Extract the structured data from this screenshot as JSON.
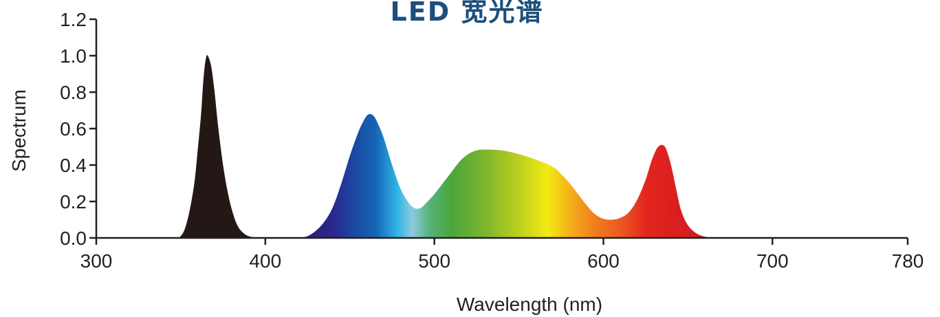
{
  "chart_data": {
    "type": "area",
    "title": "LED 宽光谱",
    "xlabel": "Wavelength (nm)",
    "ylabel": "Spectrum",
    "xlim": [
      300,
      780
    ],
    "ylim": [
      0,
      1.2
    ],
    "x_ticks": [
      300,
      400,
      500,
      600,
      700,
      780
    ],
    "y_ticks": [
      "0.0",
      "0.2",
      "0.4",
      "0.6",
      "0.8",
      "1.0",
      "1.2"
    ],
    "grid": false,
    "legend": "none",
    "series": [
      {
        "fill": "#231815",
        "x": [
          349,
          352,
          355,
          358,
          360,
          362,
          363,
          364,
          365,
          366,
          368,
          370,
          372,
          375,
          378,
          381,
          384,
          388,
          392,
          396
        ],
        "y": [
          0.0,
          0.04,
          0.14,
          0.3,
          0.48,
          0.68,
          0.82,
          0.93,
          0.99,
          1.0,
          0.94,
          0.8,
          0.62,
          0.4,
          0.24,
          0.13,
          0.06,
          0.02,
          0.005,
          0.0
        ]
      },
      {
        "fill": "spectrum-gradient",
        "x": [
          420,
          425,
          430,
          435,
          440,
          445,
          450,
          455,
          458,
          460,
          462,
          464,
          466,
          470,
          475,
          480,
          485,
          488,
          490,
          492,
          495,
          500,
          505,
          510,
          515,
          520,
          525,
          530,
          540,
          550,
          560,
          570,
          575,
          580,
          585,
          590,
          595,
          600,
          605,
          610,
          615,
          620,
          625,
          628,
          631,
          633,
          635,
          637,
          640,
          643,
          646,
          650,
          655,
          660,
          665
        ],
        "y": [
          0.0,
          0.01,
          0.04,
          0.09,
          0.17,
          0.3,
          0.45,
          0.58,
          0.64,
          0.67,
          0.68,
          0.67,
          0.64,
          0.55,
          0.4,
          0.27,
          0.19,
          0.165,
          0.16,
          0.165,
          0.19,
          0.24,
          0.3,
          0.36,
          0.42,
          0.46,
          0.48,
          0.485,
          0.48,
          0.46,
          0.43,
          0.39,
          0.35,
          0.3,
          0.24,
          0.18,
          0.13,
          0.105,
          0.1,
          0.11,
          0.14,
          0.21,
          0.32,
          0.41,
          0.48,
          0.505,
          0.51,
          0.49,
          0.4,
          0.27,
          0.15,
          0.07,
          0.025,
          0.007,
          0.0
        ]
      }
    ]
  },
  "colors": {
    "axis": "#231f20",
    "title": "#1c4f7c",
    "uv_peak": "#231815",
    "spectrum_stops": [
      {
        "nm": 420,
        "color": "#2a1f6e"
      },
      {
        "nm": 440,
        "color": "#29278f"
      },
      {
        "nm": 455,
        "color": "#1a4ea5"
      },
      {
        "nm": 465,
        "color": "#1463b5"
      },
      {
        "nm": 478,
        "color": "#2fb4e6"
      },
      {
        "nm": 487,
        "color": "#8ecae0"
      },
      {
        "nm": 497,
        "color": "#56b37a"
      },
      {
        "nm": 510,
        "color": "#4aa63c"
      },
      {
        "nm": 530,
        "color": "#7db52d"
      },
      {
        "nm": 552,
        "color": "#c3d21d"
      },
      {
        "nm": 567,
        "color": "#f4ea12"
      },
      {
        "nm": 580,
        "color": "#f5b11b"
      },
      {
        "nm": 595,
        "color": "#ef7d1e"
      },
      {
        "nm": 610,
        "color": "#ea5a21"
      },
      {
        "nm": 625,
        "color": "#e3261d"
      },
      {
        "nm": 645,
        "color": "#d81e20"
      },
      {
        "nm": 665,
        "color": "#c81f27"
      }
    ]
  }
}
